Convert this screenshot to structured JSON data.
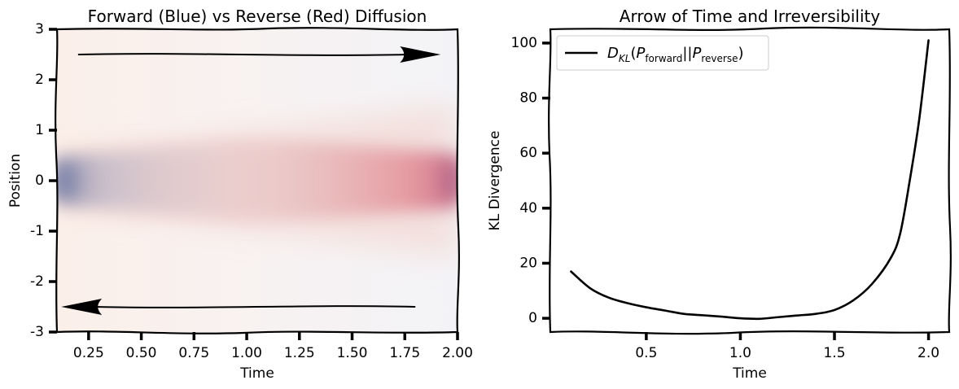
{
  "chart_data": [
    {
      "type": "heatmap",
      "title": "Forward (Blue) vs Reverse (Red) Diffusion",
      "xlabel": "Time",
      "ylabel": "Position",
      "xlim": [
        0.1,
        2.0
      ],
      "ylim": [
        -3,
        3
      ],
      "xticks": [
        0.25,
        0.5,
        0.75,
        1.0,
        1.25,
        1.5,
        1.75,
        2.0
      ],
      "xtick_labels": [
        "0.25",
        "0.50",
        "0.75",
        "1.00",
        "1.25",
        "1.50",
        "1.75",
        "2.00"
      ],
      "yticks": [
        -3,
        -2,
        -1,
        0,
        1,
        2,
        3
      ],
      "ytick_labels": [
        "-3",
        "-2",
        "-1",
        "0",
        "1",
        "2",
        "3"
      ],
      "series": [
        {
          "name": "Forward",
          "color": "#7b82a8"
        },
        {
          "name": "Reverse",
          "color": "#e0707a"
        }
      ],
      "annotations": [
        {
          "kind": "arrow",
          "direction": "forward",
          "from": [
            0.2,
            2.5
          ],
          "to": [
            1.92,
            2.5
          ]
        },
        {
          "kind": "arrow",
          "direction": "reverse",
          "from": [
            1.8,
            -2.5
          ],
          "to": [
            0.12,
            -2.5
          ]
        }
      ]
    },
    {
      "type": "line",
      "title": "Arrow of Time and Irreversibility",
      "xlabel": "Time",
      "ylabel": "KL Divergence",
      "xlim": [
        -0.01,
        2.11
      ],
      "ylim": [
        -5,
        105
      ],
      "xticks": [
        0.5,
        1.0,
        1.5,
        2.0
      ],
      "xtick_labels": [
        "0.5",
        "1.0",
        "1.5",
        "2.0"
      ],
      "yticks": [
        0,
        20,
        40,
        60,
        80,
        100
      ],
      "ytick_labels": [
        "0",
        "20",
        "40",
        "60",
        "80",
        "100"
      ],
      "legend": {
        "placement": "top-left",
        "main": "D",
        "main_sub": "KL",
        "p1": "P",
        "p1_sub": "forward",
        "sep": "||",
        "p2": "P",
        "p2_sub": "reverse"
      },
      "series": [
        {
          "color": "#000000",
          "x": [
            0.1,
            0.2,
            0.3,
            0.4,
            0.5,
            0.6,
            0.7,
            0.8,
            0.9,
            1.0,
            1.1,
            1.2,
            1.3,
            1.4,
            1.5,
            1.6,
            1.7,
            1.8,
            1.85,
            1.9,
            1.95,
            2.0
          ],
          "y": [
            17,
            11,
            7.5,
            5.5,
            4,
            2.8,
            1.6,
            1.1,
            0.6,
            0.0,
            -0.2,
            0.4,
            1.0,
            1.6,
            3.0,
            6.5,
            12.5,
            22,
            31,
            50,
            72,
            101
          ]
        }
      ]
    }
  ]
}
